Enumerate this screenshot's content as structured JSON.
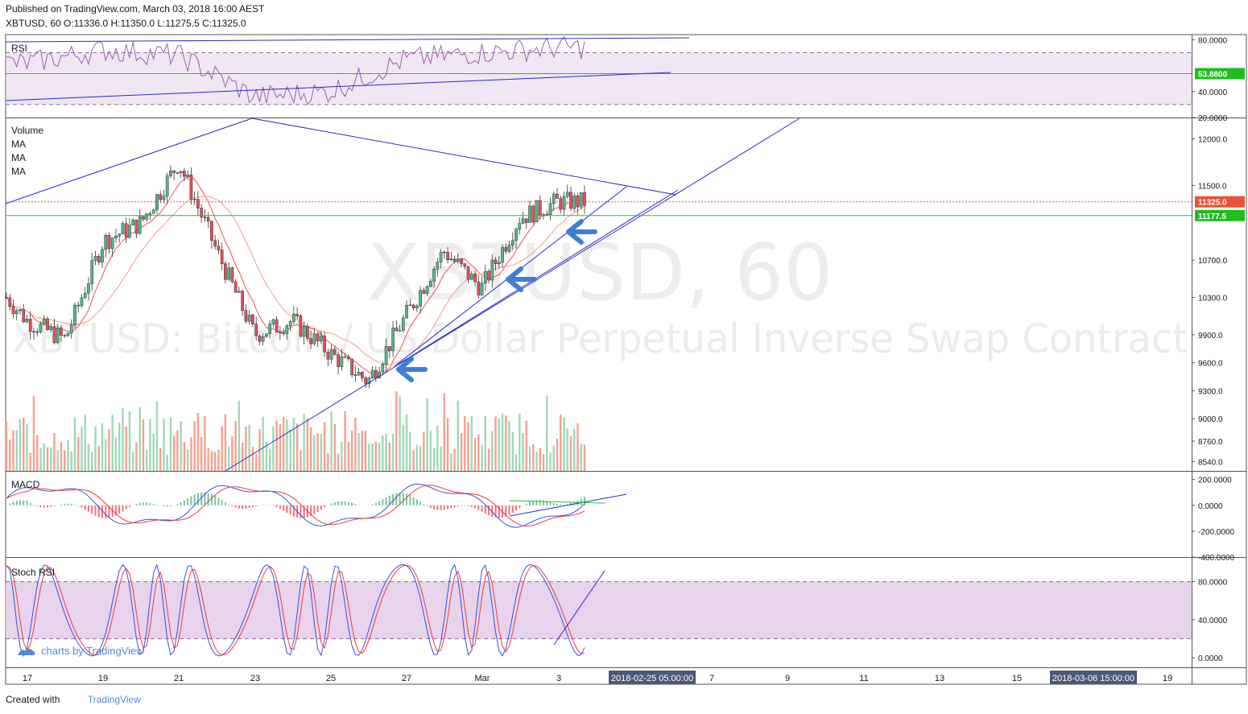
{
  "header": {
    "published": "Published on TradingView.com, March 03, 2018 16:00 AEST",
    "symbol_line": "XBTUSD, 60 O:11336.0 H:11350.0 L:11275.5 C:11325.0"
  },
  "watermark": {
    "symbol": "XBTUSD, 60",
    "description": "XBTUSD: Bitcoin / US Dollar Perpetual Inverse Swap Contract"
  },
  "footer": {
    "created_with": "Created with",
    "brand": "TradingView",
    "charts_by": "charts by TradingView"
  },
  "colors": {
    "up": "#53b987",
    "down": "#eb4d5c",
    "volume_up": "#9fd8b6",
    "volume_down": "#f5a08e",
    "trendline": "#2a2ad0",
    "ma_red": "#ef5350",
    "ma_orange": "#f0a08a",
    "rsi_line": "#9c5fb0",
    "band_fill": "#e1c8e6",
    "green_line": "#22c322",
    "macd_line": "#3950e0",
    "signal_line": "#ef3b3b",
    "stoch_k": "#3950e0",
    "stoch_d": "#ef3b3b",
    "arrow": "#3f7fd2"
  },
  "chart_data": [
    {
      "type": "line",
      "pane": "rsi",
      "title": "RSI",
      "y_ticks": [
        "80.0000",
        "40.0000",
        "20.0000"
      ],
      "yticks": [
        80,
        40,
        20
      ],
      "ylim": [
        20,
        84
      ],
      "band": [
        70,
        30
      ],
      "horizontal_line": {
        "value": 53.88,
        "label": "53.8800"
      },
      "x": [
        "Feb 17",
        "Feb 19",
        "Feb 21",
        "Feb 23",
        "Feb 25",
        "Feb 27",
        "Mar 1",
        "Mar 3"
      ],
      "values": [
        62,
        72,
        68,
        36,
        40,
        65,
        70,
        74
      ]
    },
    {
      "type": "candlestick",
      "pane": "price",
      "title": "XBTUSD, 60",
      "legend": [
        "Volume",
        "MA",
        "MA",
        "MA"
      ],
      "y_ticks": [
        "12000.0",
        "11500.0",
        "10700.0",
        "10300.0",
        "9900.0",
        "9600.0",
        "9300.0",
        "9000.0",
        "8760.0",
        "8540.0"
      ],
      "yticks": [
        12000,
        11500,
        10700,
        10300,
        9900,
        9600,
        9300,
        9000,
        8760,
        8540
      ],
      "ylim": [
        8440,
        12220
      ],
      "price_label": {
        "value": 11325.0,
        "label": "11325.0"
      },
      "horizontal_line": {
        "value": 11177.5,
        "label": "11177.5"
      },
      "x_tick_labels": [
        "17",
        "19",
        "21",
        "23",
        "25",
        "27",
        "Mar",
        "3",
        "7",
        "9",
        "11",
        "13",
        "15",
        "17",
        "19"
      ],
      "crosshair_labels": [
        "2018-02-25 05:00:00",
        "2018-03-06 15:00:00"
      ],
      "key_points": [
        {
          "x": "Feb 17",
          "close": 10050
        },
        {
          "x": "Feb 18",
          "close": 9850
        },
        {
          "x": "Feb 19",
          "close": 10900
        },
        {
          "x": "Feb 20",
          "close": 11100
        },
        {
          "x": "Feb 21",
          "close": 11750
        },
        {
          "x": "Feb 22",
          "close": 10800
        },
        {
          "x": "Feb 23",
          "close": 9900
        },
        {
          "x": "Feb 24",
          "close": 10050
        },
        {
          "x": "Feb 25",
          "close": 9700
        },
        {
          "x": "Feb 26",
          "close": 9400
        },
        {
          "x": "Feb 27",
          "close": 10100
        },
        {
          "x": "Feb 28",
          "close": 10800
        },
        {
          "x": "Mar 1",
          "close": 10400
        },
        {
          "x": "Mar 2",
          "close": 11150
        },
        {
          "x": "Mar 3",
          "close": 11325
        }
      ]
    },
    {
      "type": "line",
      "pane": "macd",
      "title": "MACD",
      "y_ticks": [
        "200.0000",
        "0.0000",
        "-200.0000",
        "-400.0000"
      ],
      "yticks": [
        200,
        0,
        -200,
        -400
      ],
      "ylim": [
        -400,
        260
      ]
    },
    {
      "type": "line",
      "pane": "stoch_rsi",
      "title": "Stoch RSI",
      "y_ticks": [
        "80.0000",
        "40.0000",
        "0.0000"
      ],
      "yticks": [
        80,
        40,
        0
      ],
      "ylim": [
        -10,
        105
      ],
      "band": [
        80,
        20
      ]
    }
  ]
}
